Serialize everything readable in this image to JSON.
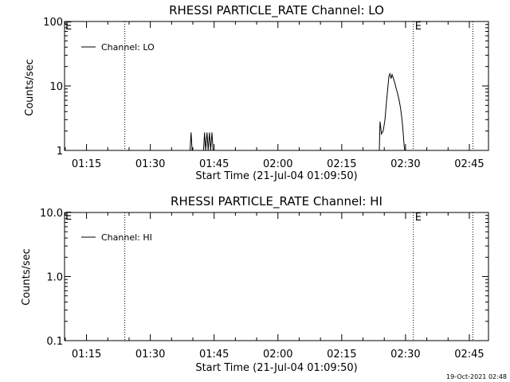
{
  "footer_timestamp": "19-Oct-2021 02:48",
  "chart_data": [
    {
      "type": "line",
      "title": "RHESSI PARTICLE_RATE Channel: LO",
      "xlabel": "Start Time (21-Jul-04 01:09:50)",
      "ylabel": "Counts/sec",
      "yscale": "log",
      "ylim": [
        1,
        100
      ],
      "xlim": [
        "01:09:50",
        "02:49:30"
      ],
      "x_ticks": [
        "01:15",
        "01:30",
        "01:45",
        "02:00",
        "02:15",
        "02:30",
        "02:45"
      ],
      "y_ticks": [
        "1",
        "10",
        "100"
      ],
      "legend": {
        "position": "top-left",
        "entries": [
          "Channel: LO"
        ]
      },
      "event_markers": [
        {
          "time": "01:24:00",
          "label": ""
        },
        {
          "time": "02:31:50",
          "label": "E"
        },
        {
          "time": "02:45:50",
          "label": ""
        }
      ],
      "corner_label": "E",
      "series": [
        {
          "name": "Channel: LO",
          "points": [
            [
              "01:39:20",
              1
            ],
            [
              "01:39:35",
              1.9
            ],
            [
              "01:39:50",
              1
            ],
            [
              "01:42:30",
              1
            ],
            [
              "01:42:45",
              1.9
            ],
            [
              "01:43:00",
              1
            ],
            [
              "01:43:20",
              1.9
            ],
            [
              "01:43:35",
              1
            ],
            [
              "01:43:55",
              1.9
            ],
            [
              "01:44:10",
              1
            ],
            [
              "01:44:30",
              1.9
            ],
            [
              "01:44:45",
              1
            ],
            [
              "02:23:50",
              1
            ],
            [
              "02:24:00",
              2.8
            ],
            [
              "02:24:20",
              1.8
            ],
            [
              "02:24:45",
              2.0
            ],
            [
              "02:25:10",
              3.0
            ],
            [
              "02:25:30",
              5.5
            ],
            [
              "02:25:50",
              9.5
            ],
            [
              "02:26:05",
              14.0
            ],
            [
              "02:26:20",
              15.5
            ],
            [
              "02:26:35",
              13.0
            ],
            [
              "02:26:50",
              15.0
            ],
            [
              "02:27:10",
              13.0
            ],
            [
              "02:27:30",
              11.0
            ],
            [
              "02:27:50",
              9.0
            ],
            [
              "02:28:10",
              7.5
            ],
            [
              "02:28:30",
              6.0
            ],
            [
              "02:28:50",
              4.5
            ],
            [
              "02:29:10",
              3.0
            ],
            [
              "02:29:25",
              2.0
            ],
            [
              "02:29:40",
              1.2
            ],
            [
              "02:29:50",
              1
            ]
          ]
        }
      ]
    },
    {
      "type": "line",
      "title": "RHESSI PARTICLE_RATE Channel: HI",
      "xlabel": "Start Time (21-Jul-04 01:09:50)",
      "ylabel": "Counts/sec",
      "yscale": "log",
      "ylim": [
        0.1,
        10
      ],
      "xlim": [
        "01:09:50",
        "02:49:30"
      ],
      "x_ticks": [
        "01:15",
        "01:30",
        "01:45",
        "02:00",
        "02:15",
        "02:30",
        "02:45"
      ],
      "y_ticks": [
        "0.1",
        "1.0",
        "10.0"
      ],
      "legend": {
        "position": "top-left",
        "entries": [
          "Channel: HI"
        ]
      },
      "event_markers": [
        {
          "time": "01:24:00",
          "label": ""
        },
        {
          "time": "02:31:50",
          "label": "E"
        },
        {
          "time": "02:45:50",
          "label": ""
        }
      ],
      "corner_label": "E",
      "series": [
        {
          "name": "Channel: HI",
          "points": []
        }
      ]
    }
  ]
}
